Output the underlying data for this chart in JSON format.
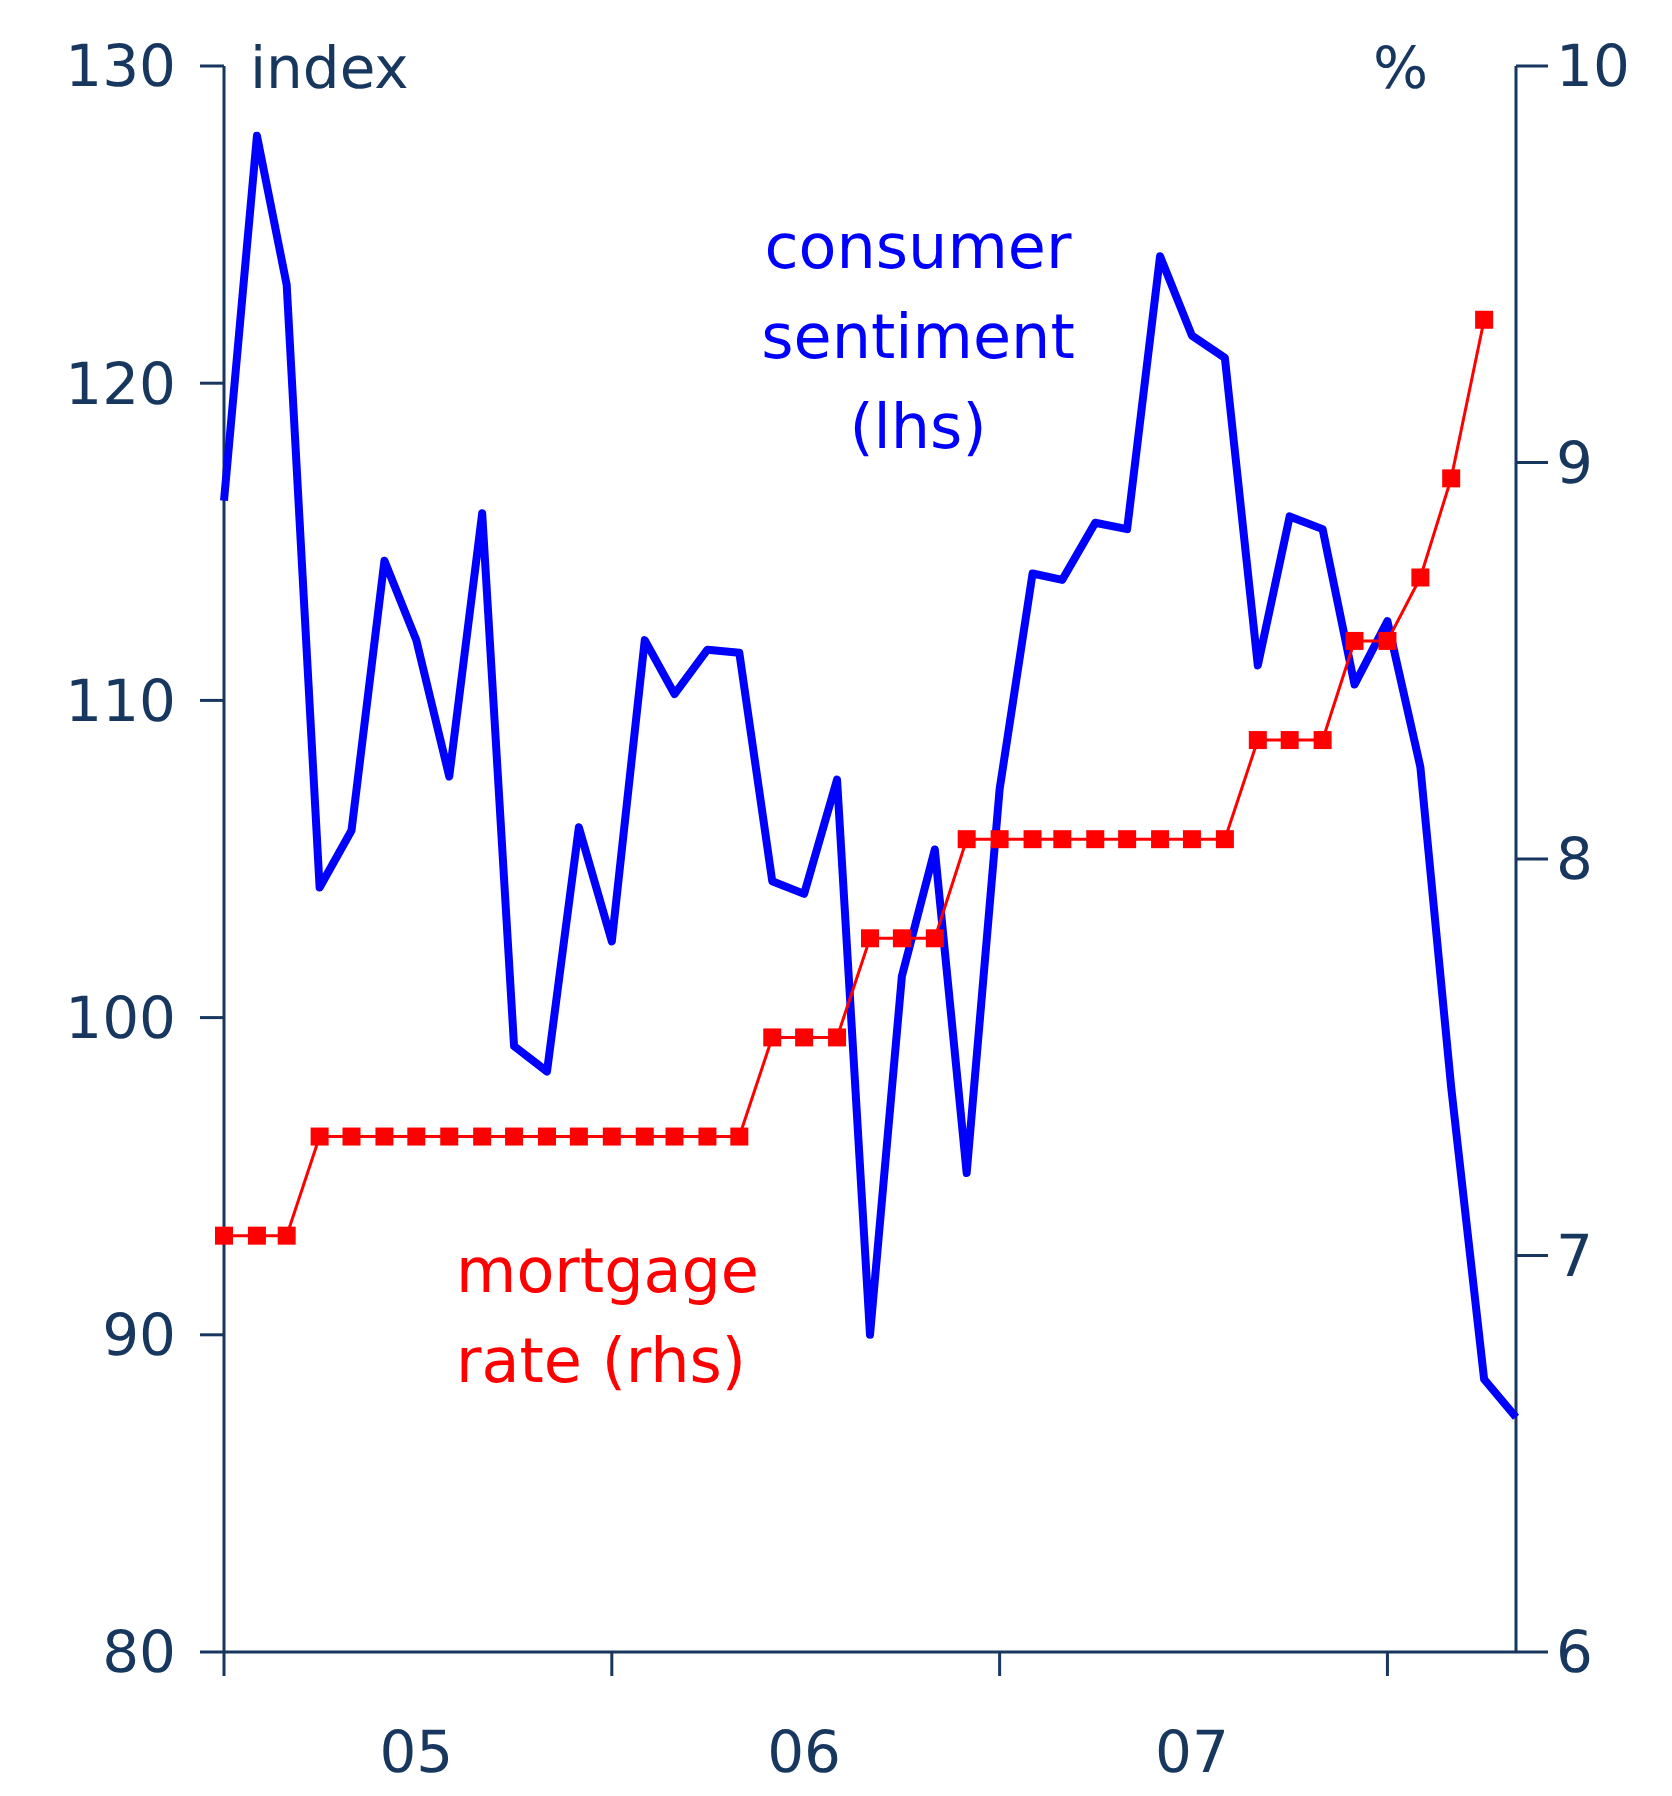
{
  "chart_data": {
    "type": "line",
    "ylabel": "index",
    "y2label": "%",
    "x": [
      "2005-01",
      "2005-02",
      "2005-03",
      "2005-04",
      "2005-05",
      "2005-06",
      "2005-07",
      "2005-08",
      "2005-09",
      "2005-10",
      "2005-11",
      "2005-12",
      "2006-01",
      "2006-02",
      "2006-03",
      "2006-04",
      "2006-05",
      "2006-06",
      "2006-07",
      "2006-08",
      "2006-09",
      "2006-10",
      "2006-11",
      "2006-12",
      "2007-01",
      "2007-02",
      "2007-03",
      "2007-04",
      "2007-05",
      "2007-06",
      "2007-07",
      "2007-08",
      "2007-09",
      "2007-10",
      "2007-11",
      "2007-12",
      "2008-01",
      "2008-02",
      "2008-03",
      "2008-04",
      "2008-05"
    ],
    "xlim": [
      "2005-01",
      "2008-05"
    ],
    "xticks": [
      {
        "value": "2005-01",
        "label": null
      },
      {
        "value": "2005-07",
        "label": "05"
      },
      {
        "value": "2006-01",
        "label": null
      },
      {
        "value": "2006-07",
        "label": "06"
      },
      {
        "value": "2007-01",
        "label": null
      },
      {
        "value": "2007-07",
        "label": "07"
      },
      {
        "value": "2008-01",
        "label": null
      }
    ],
    "ylim": [
      80,
      130
    ],
    "yticks": [
      80,
      90,
      100,
      110,
      120,
      130
    ],
    "y2lim": [
      6,
      10
    ],
    "y2ticks": [
      6,
      7,
      8,
      9,
      10
    ],
    "grid": false,
    "series": [
      {
        "name": "consumer sentiment (lhs)",
        "color": "#0000ff",
        "marker": "none",
        "values": [
          116.3,
          127.8,
          123.1,
          104.1,
          105.9,
          114.4,
          111.9,
          107.6,
          115.9,
          99.1,
          98.3,
          106.0,
          102.4,
          111.9,
          110.2,
          111.6,
          111.5,
          104.3,
          103.9,
          107.5,
          90.0,
          101.3,
          105.3,
          95.1,
          107.2,
          114.0,
          113.8,
          115.6,
          115.4,
          124.0,
          121.5,
          120.8,
          111.1,
          115.8,
          115.4,
          110.5,
          112.5,
          107.9,
          97.8,
          88.6,
          87.4
        ]
      },
      {
        "name": "mortgage rate (rhs)",
        "color": "#ff0000",
        "axis": "y2",
        "marker": "square",
        "x": [
          "2005-01",
          "2005-02",
          "2005-03",
          "2005-04",
          "2005-05",
          "2005-06",
          "2005-07",
          "2005-08",
          "2005-09",
          "2005-10",
          "2005-11",
          "2005-12",
          "2006-01",
          "2006-02",
          "2006-03",
          "2006-04",
          "2006-05",
          "2006-06",
          "2006-07",
          "2006-08",
          "2006-09",
          "2006-10",
          "2006-11",
          "2006-12",
          "2007-01",
          "2007-02",
          "2007-03",
          "2007-04",
          "2007-05",
          "2007-06",
          "2007-07",
          "2007-08",
          "2007-09",
          "2007-10",
          "2007-11",
          "2007-12",
          "2008-01",
          "2008-02",
          "2008-03",
          "2008-04"
        ],
        "values": [
          7.05,
          7.05,
          7.05,
          7.3,
          7.3,
          7.3,
          7.3,
          7.3,
          7.3,
          7.3,
          7.3,
          7.3,
          7.3,
          7.3,
          7.3,
          7.3,
          7.3,
          7.55,
          7.55,
          7.55,
          7.8,
          7.8,
          7.8,
          8.05,
          8.05,
          8.05,
          8.05,
          8.05,
          8.05,
          8.05,
          8.05,
          8.05,
          8.3,
          8.3,
          8.3,
          8.55,
          8.55,
          8.71,
          8.96,
          9.36
        ]
      }
    ]
  }
}
